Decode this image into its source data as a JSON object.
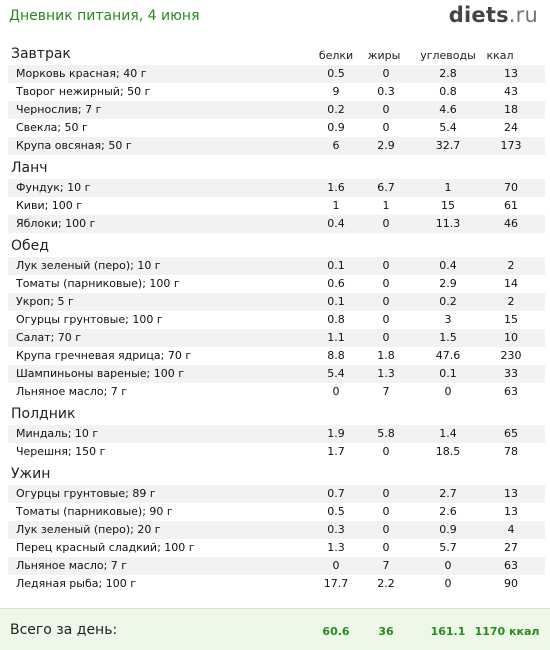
{
  "header": {
    "title": "Дневник питания, 4 июня",
    "brand_main": "diets",
    "brand_tld": ".ru"
  },
  "columns": {
    "protein": "белки",
    "fat": "жиры",
    "carbs": "углеводы",
    "kcal": "ккал"
  },
  "meals": [
    {
      "name": "Завтрак",
      "items": [
        {
          "name": "Морковь красная; 40 г",
          "protein": "0.5",
          "fat": "0",
          "carbs": "2.8",
          "kcal": "13"
        },
        {
          "name": "Творог нежирный; 50 г",
          "protein": "9",
          "fat": "0.3",
          "carbs": "0.8",
          "kcal": "43"
        },
        {
          "name": "Чернослив; 7 г",
          "protein": "0.2",
          "fat": "0",
          "carbs": "4.6",
          "kcal": "18"
        },
        {
          "name": "Свекла; 50 г",
          "protein": "0.9",
          "fat": "0",
          "carbs": "5.4",
          "kcal": "24"
        },
        {
          "name": "Крупа овсяная; 50 г",
          "protein": "6",
          "fat": "2.9",
          "carbs": "32.7",
          "kcal": "173"
        }
      ]
    },
    {
      "name": "Ланч",
      "items": [
        {
          "name": "Фундук; 10 г",
          "protein": "1.6",
          "fat": "6.7",
          "carbs": "1",
          "kcal": "70"
        },
        {
          "name": "Киви; 100 г",
          "protein": "1",
          "fat": "1",
          "carbs": "15",
          "kcal": "61"
        },
        {
          "name": "Яблоки; 100 г",
          "protein": "0.4",
          "fat": "0",
          "carbs": "11.3",
          "kcal": "46"
        }
      ]
    },
    {
      "name": "Обед",
      "items": [
        {
          "name": "Лук зеленый (перо); 10 г",
          "protein": "0.1",
          "fat": "0",
          "carbs": "0.4",
          "kcal": "2"
        },
        {
          "name": "Томаты (парниковые); 100 г",
          "protein": "0.6",
          "fat": "0",
          "carbs": "2.9",
          "kcal": "14"
        },
        {
          "name": "Укроп; 5 г",
          "protein": "0.1",
          "fat": "0",
          "carbs": "0.2",
          "kcal": "2"
        },
        {
          "name": "Огурцы грунтовые; 100 г",
          "protein": "0.8",
          "fat": "0",
          "carbs": "3",
          "kcal": "15"
        },
        {
          "name": "Салат; 70 г",
          "protein": "1.1",
          "fat": "0",
          "carbs": "1.5",
          "kcal": "10"
        },
        {
          "name": "Крупа гречневая ядрица; 70 г",
          "protein": "8.8",
          "fat": "1.8",
          "carbs": "47.6",
          "kcal": "230"
        },
        {
          "name": "Шампиньоны вареные; 100 г",
          "protein": "5.4",
          "fat": "1.3",
          "carbs": "0.1",
          "kcal": "33"
        },
        {
          "name": "Льняное масло; 7 г",
          "protein": "0",
          "fat": "7",
          "carbs": "0",
          "kcal": "63"
        }
      ]
    },
    {
      "name": "Полдник",
      "items": [
        {
          "name": "Миндаль; 10 г",
          "protein": "1.9",
          "fat": "5.8",
          "carbs": "1.4",
          "kcal": "65"
        },
        {
          "name": "Черешня; 150 г",
          "protein": "1.7",
          "fat": "0",
          "carbs": "18.5",
          "kcal": "78"
        }
      ]
    },
    {
      "name": "Ужин",
      "items": [
        {
          "name": "Огурцы грунтовые; 89 г",
          "protein": "0.7",
          "fat": "0",
          "carbs": "2.7",
          "kcal": "13"
        },
        {
          "name": "Томаты (парниковые); 90 г",
          "protein": "0.5",
          "fat": "0",
          "carbs": "2.6",
          "kcal": "13"
        },
        {
          "name": "Лук зеленый (перо); 20 г",
          "protein": "0.3",
          "fat": "0",
          "carbs": "0.9",
          "kcal": "4"
        },
        {
          "name": "Перец красный сладкий; 100 г",
          "protein": "1.3",
          "fat": "0",
          "carbs": "5.7",
          "kcal": "27"
        },
        {
          "name": "Льняное масло; 7 г",
          "protein": "0",
          "fat": "7",
          "carbs": "0",
          "kcal": "63"
        },
        {
          "name": "Ледяная рыба; 100 г",
          "protein": "17.7",
          "fat": "2.2",
          "carbs": "0",
          "kcal": "90"
        }
      ]
    }
  ],
  "total": {
    "label": "Всего за день:",
    "protein": "60.6",
    "fat": "36",
    "carbs": "161.1",
    "kcal": "1170 ккал"
  },
  "colors": {
    "title": "#2a8a1f",
    "total_bg": "#eef8e8",
    "row_alt": "#f2f2f2"
  }
}
